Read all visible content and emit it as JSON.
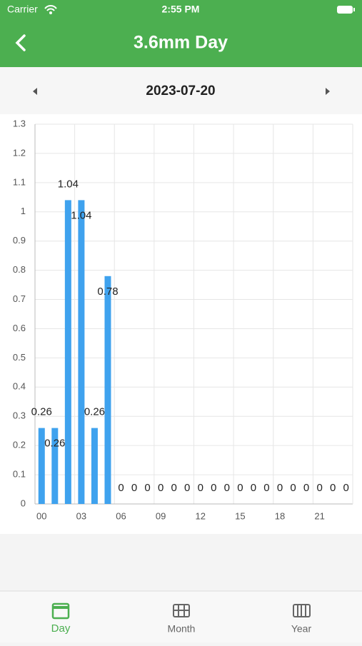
{
  "status_bar": {
    "carrier": "Carrier",
    "time": "2:55 PM"
  },
  "header": {
    "title": "3.6mm Day"
  },
  "date_nav": {
    "date": "2023-07-20"
  },
  "chart_data": {
    "type": "bar",
    "color": "#3fa2ee",
    "grid": true,
    "categories": [
      "00",
      null,
      null,
      "03",
      null,
      null,
      "06",
      null,
      null,
      "09",
      null,
      null,
      "12",
      null,
      null,
      "15",
      null,
      null,
      "18",
      null,
      null,
      "21",
      null,
      null
    ],
    "values": [
      0.26,
      0.26,
      1.04,
      1.04,
      0.26,
      0.78,
      0,
      0,
      0,
      0,
      0,
      0,
      0,
      0,
      0,
      0,
      0,
      0,
      0,
      0,
      0,
      0,
      0,
      0
    ],
    "ylim": [
      0,
      1.3
    ],
    "yticks": [
      0,
      0.1,
      0.2,
      0.3,
      0.4,
      0.5,
      0.6,
      0.7,
      0.8,
      0.9,
      1,
      1.1,
      1.2,
      1.3
    ]
  },
  "tabs": [
    {
      "label": "Day"
    },
    {
      "label": "Month"
    },
    {
      "label": "Year"
    }
  ]
}
